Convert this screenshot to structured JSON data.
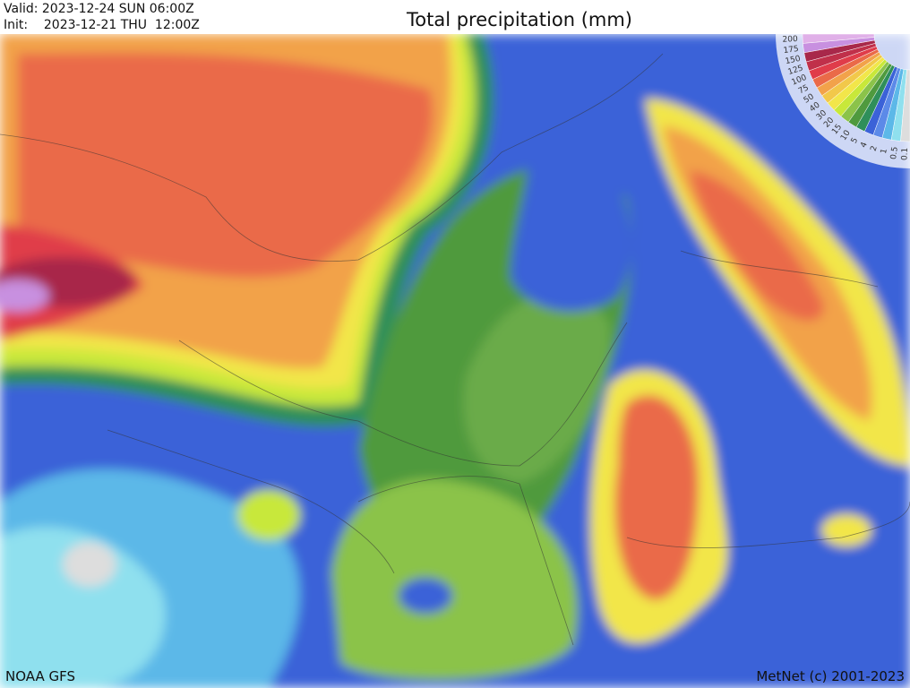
{
  "header": {
    "valid": "Valid: 2023-12-24 SUN  06:00Z",
    "init": "Init:    2023-12-21 THU  12:00Z",
    "title": "Total precipitation (mm)"
  },
  "legend": {
    "labels": [
      "200",
      "175",
      "150",
      "125",
      "100",
      "75",
      "50",
      "40",
      "30",
      "20",
      "15",
      "10",
      "5",
      "4",
      "2",
      "1",
      "0.5",
      "0.1"
    ]
  },
  "footer": {
    "source": "NOAA GFS",
    "credit": "MetNet (c) 2001-2023"
  }
}
